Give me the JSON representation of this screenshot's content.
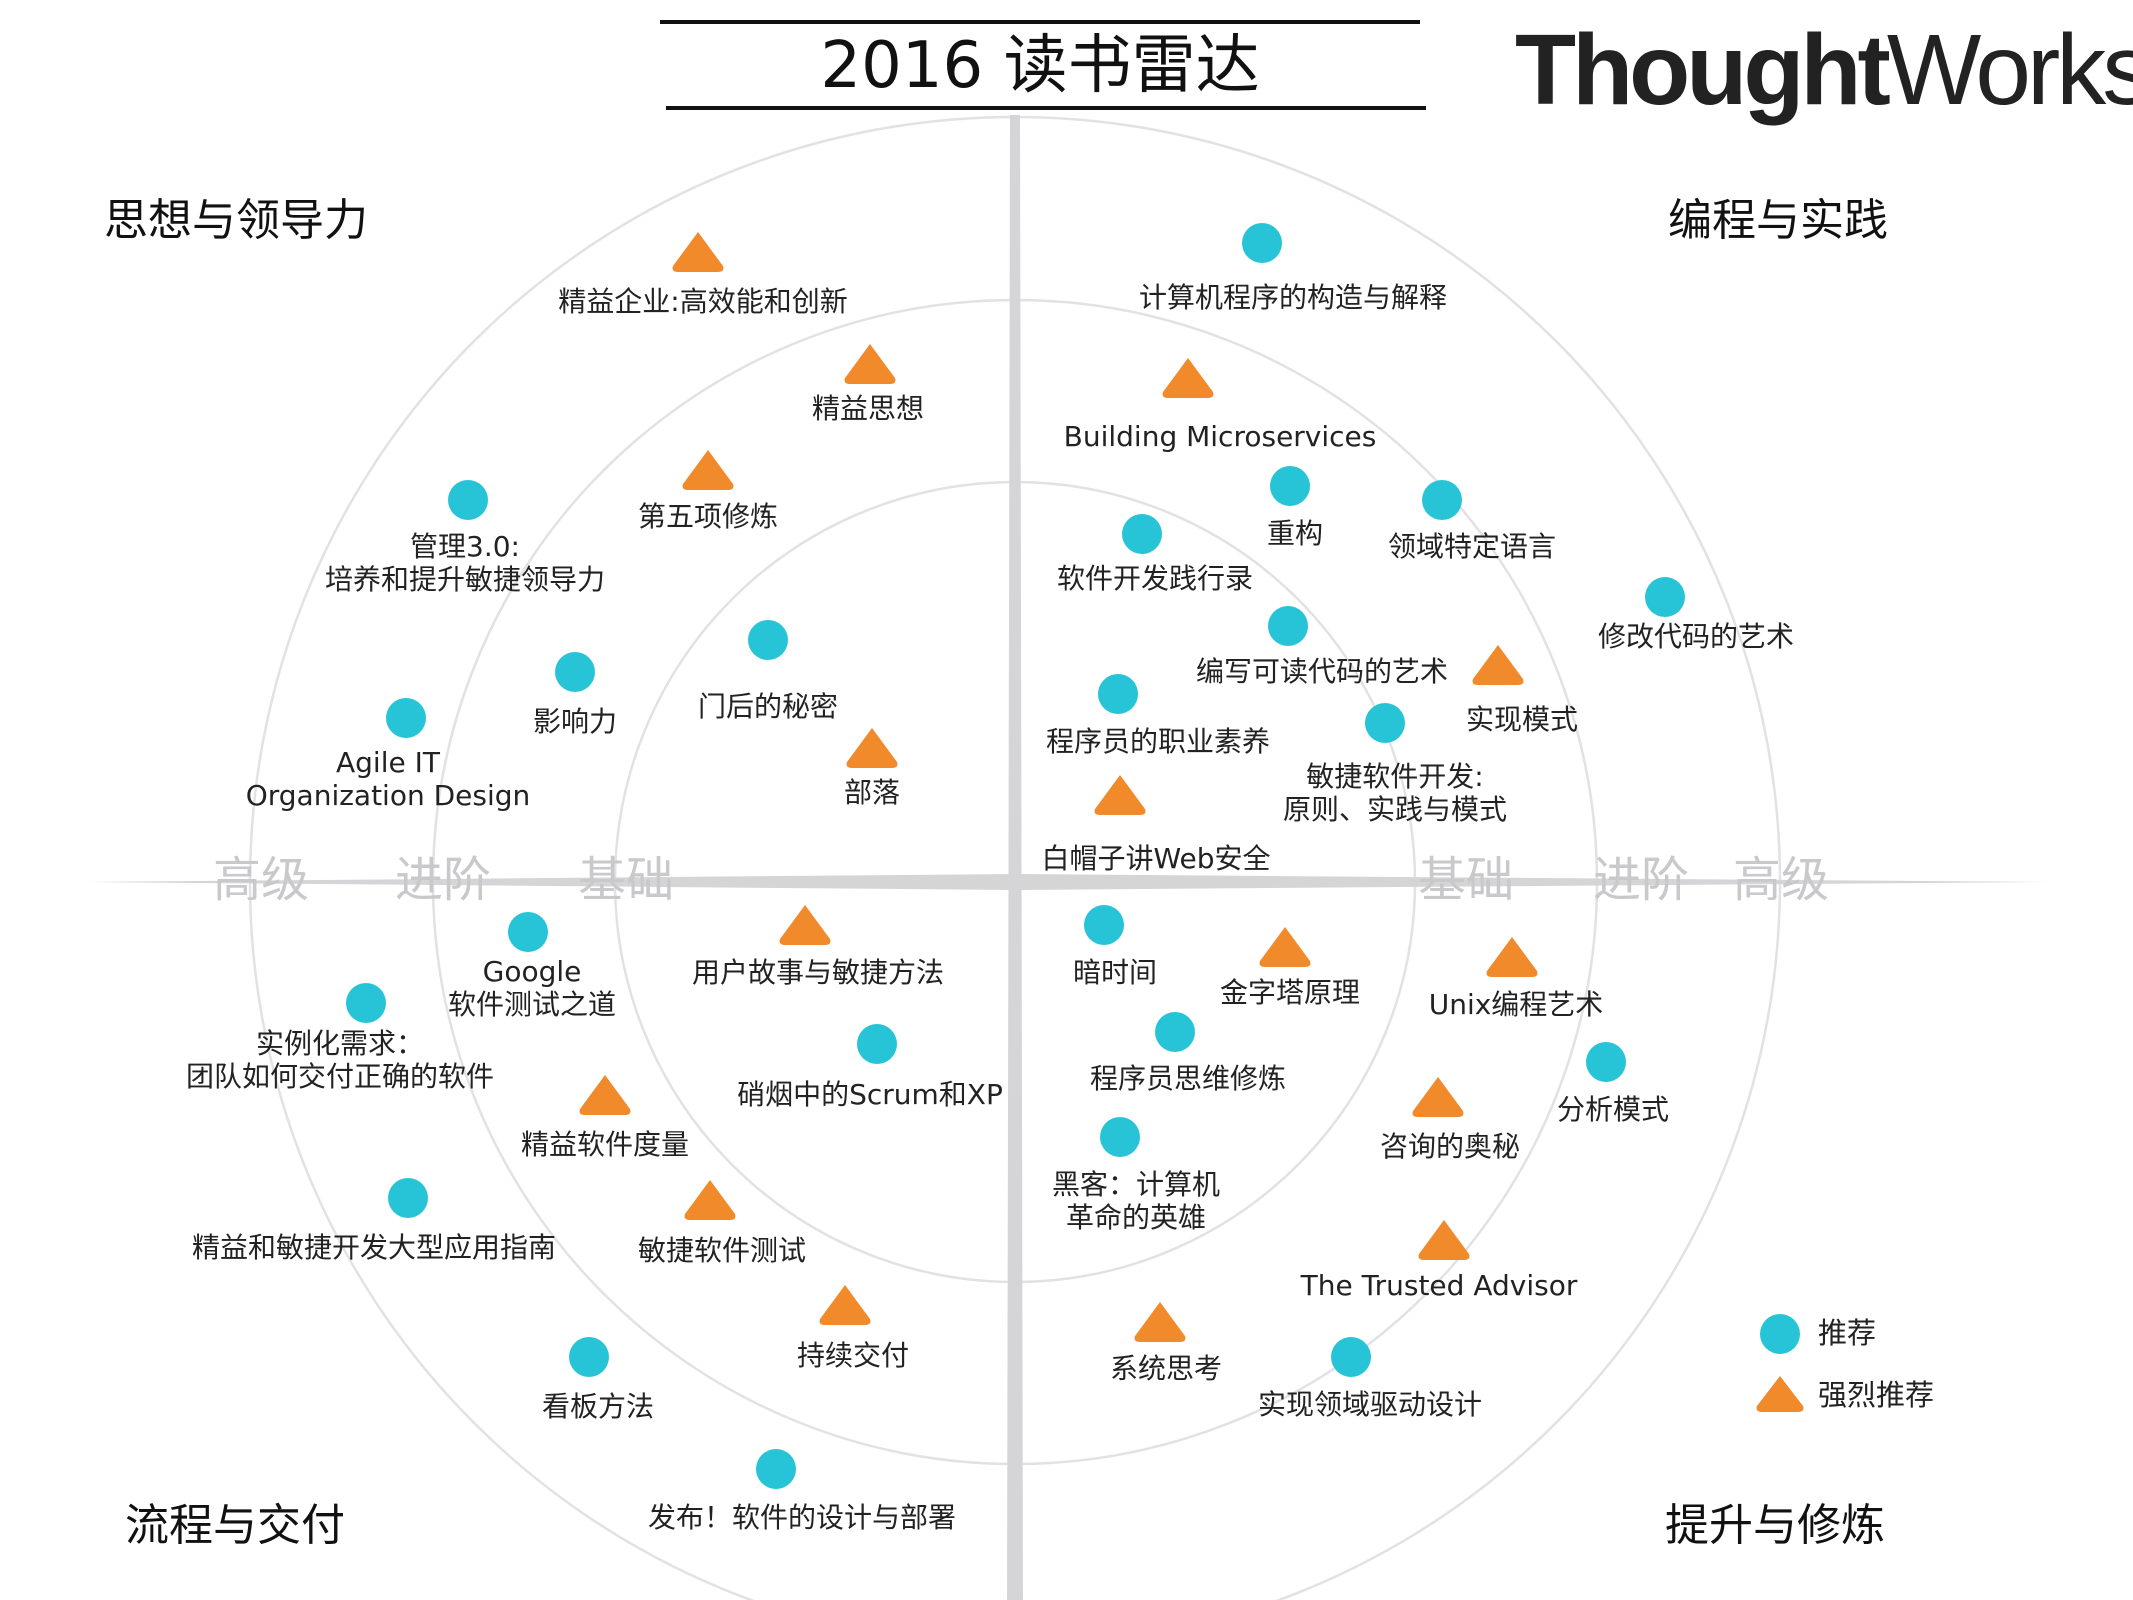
{
  "title": "2016 读书雷达",
  "brand": {
    "bold": "Thought",
    "light": "Works",
    "mark": "®"
  },
  "quadrants": {
    "top_left": "思想与领导力",
    "top_right": "编程与实践",
    "bottom_left": "流程与交付",
    "bottom_right": "提升与修炼"
  },
  "rings": {
    "left": [
      "高级",
      "进阶",
      "基础"
    ],
    "right": [
      "基础",
      "进阶",
      "高级"
    ]
  },
  "legend": {
    "recommend": "推荐",
    "strong": "强烈推荐"
  },
  "colors": {
    "recommend": "#27c4d8",
    "strong": "#f18a2a",
    "axis": "#d5d5d8",
    "ring": "#e2e2e6"
  },
  "books": [
    {
      "text": [
        "精益企业:高效能和创新"
      ],
      "marker": "strong",
      "quadrant": "思想与领导力"
    },
    {
      "text": [
        "精益思想"
      ],
      "marker": "strong",
      "quadrant": "思想与领导力"
    },
    {
      "text": [
        "第五项修炼"
      ],
      "marker": "strong",
      "quadrant": "思想与领导力"
    },
    {
      "text": [
        "管理3.0:",
        "培养和提升敏捷领导力"
      ],
      "marker": "recommend",
      "quadrant": "思想与领导力"
    },
    {
      "text": [
        "影响力"
      ],
      "marker": "recommend",
      "quadrant": "思想与领导力"
    },
    {
      "text": [
        "门后的秘密"
      ],
      "marker": "recommend",
      "quadrant": "思想与领导力"
    },
    {
      "text": [
        "Agile IT",
        "Organization Design"
      ],
      "marker": "recommend",
      "quadrant": "思想与领导力"
    },
    {
      "text": [
        "部落"
      ],
      "marker": "strong",
      "quadrant": "思想与领导力"
    },
    {
      "text": [
        "计算机程序的构造与解释"
      ],
      "marker": "recommend",
      "quadrant": "编程与实践"
    },
    {
      "text": [
        "Building Microservices"
      ],
      "marker": "strong",
      "quadrant": "编程与实践"
    },
    {
      "text": [
        "重构"
      ],
      "marker": "recommend",
      "quadrant": "编程与实践"
    },
    {
      "text": [
        "领域特定语言"
      ],
      "marker": "recommend",
      "quadrant": "编程与实践"
    },
    {
      "text": [
        "软件开发践行录"
      ],
      "marker": "recommend",
      "quadrant": "编程与实践"
    },
    {
      "text": [
        "修改代码的艺术"
      ],
      "marker": "recommend",
      "quadrant": "编程与实践"
    },
    {
      "text": [
        "编写可读代码的艺术"
      ],
      "marker": "recommend",
      "quadrant": "编程与实践"
    },
    {
      "text": [
        "实现模式"
      ],
      "marker": "strong",
      "quadrant": "编程与实践"
    },
    {
      "text": [
        "程序员的职业素养"
      ],
      "marker": "recommend",
      "quadrant": "编程与实践"
    },
    {
      "text": [
        "敏捷软件开发:",
        "原则、实践与模式"
      ],
      "marker": "recommend",
      "quadrant": "编程与实践"
    },
    {
      "text": [
        "白帽子讲Web安全"
      ],
      "marker": "strong",
      "quadrant": "编程与实践"
    },
    {
      "text": [
        "Google",
        "软件测试之道"
      ],
      "marker": "recommend",
      "quadrant": "流程与交付"
    },
    {
      "text": [
        "用户故事与敏捷方法"
      ],
      "marker": "strong",
      "quadrant": "流程与交付"
    },
    {
      "text": [
        "实例化需求：",
        "团队如何交付正确的软件"
      ],
      "marker": "recommend",
      "quadrant": "流程与交付"
    },
    {
      "text": [
        "硝烟中的Scrum和XP"
      ],
      "marker": "recommend",
      "quadrant": "流程与交付"
    },
    {
      "text": [
        "精益软件度量"
      ],
      "marker": "strong",
      "quadrant": "流程与交付"
    },
    {
      "text": [
        "精益和敏捷开发大型应用指南"
      ],
      "marker": "recommend",
      "quadrant": "流程与交付"
    },
    {
      "text": [
        "敏捷软件测试"
      ],
      "marker": "strong",
      "quadrant": "流程与交付"
    },
    {
      "text": [
        "持续交付"
      ],
      "marker": "strong",
      "quadrant": "流程与交付"
    },
    {
      "text": [
        "看板方法"
      ],
      "marker": "recommend",
      "quadrant": "流程与交付"
    },
    {
      "text": [
        "发布！软件的设计与部署"
      ],
      "marker": "recommend",
      "quadrant": "流程与交付"
    },
    {
      "text": [
        "暗时间"
      ],
      "marker": "recommend",
      "quadrant": "提升与修炼"
    },
    {
      "text": [
        "金字塔原理"
      ],
      "marker": "strong",
      "quadrant": "提升与修炼"
    },
    {
      "text": [
        "Unix编程艺术"
      ],
      "marker": "strong",
      "quadrant": "提升与修炼"
    },
    {
      "text": [
        "程序员思维修炼"
      ],
      "marker": "recommend",
      "quadrant": "提升与修炼"
    },
    {
      "text": [
        "分析模式"
      ],
      "marker": "recommend",
      "quadrant": "提升与修炼"
    },
    {
      "text": [
        "咨询的奥秘"
      ],
      "marker": "strong",
      "quadrant": "提升与修炼"
    },
    {
      "text": [
        "黑客：计算机",
        "革命的英雄"
      ],
      "marker": "recommend",
      "quadrant": "提升与修炼"
    },
    {
      "text": [
        "The Trusted Advisor"
      ],
      "marker": "strong",
      "quadrant": "提升与修炼"
    },
    {
      "text": [
        "系统思考"
      ],
      "marker": "strong",
      "quadrant": "提升与修炼"
    },
    {
      "text": [
        "实现领域驱动设计"
      ],
      "marker": "recommend",
      "quadrant": "提升与修炼"
    }
  ]
}
